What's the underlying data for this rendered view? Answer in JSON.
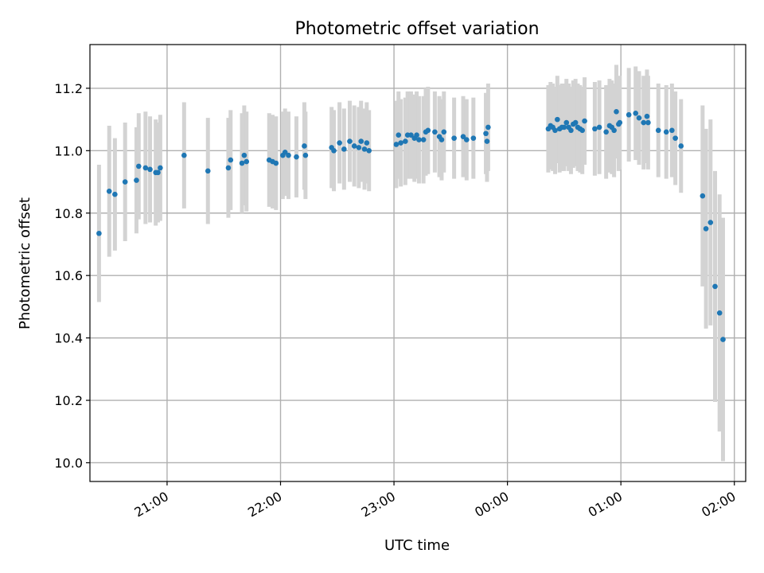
{
  "chart_data": {
    "type": "scatter",
    "title": "Photometric offset variation",
    "xlabel": "UTC time",
    "ylabel": "Photometric offset",
    "x_unit": "hours since 00:00 UTC (negative = previous day)",
    "xlim": [
      -3.68,
      2.1
    ],
    "ylim": [
      9.94,
      11.34
    ],
    "xticks": [
      {
        "x": -3,
        "label": "21:00"
      },
      {
        "x": -2,
        "label": "22:00"
      },
      {
        "x": -1,
        "label": "23:00"
      },
      {
        "x": 0,
        "label": "00:00"
      },
      {
        "x": 1,
        "label": "01:00"
      },
      {
        "x": 2,
        "label": "02:00"
      }
    ],
    "yticks": [
      {
        "y": 10.0,
        "label": "10.0"
      },
      {
        "y": 10.2,
        "label": "10.2"
      },
      {
        "y": 10.4,
        "label": "10.4"
      },
      {
        "y": 10.6,
        "label": "10.6"
      },
      {
        "y": 10.8,
        "label": "10.8"
      },
      {
        "y": 11.0,
        "label": "11.0"
      },
      {
        "y": 11.2,
        "label": "11.2"
      }
    ],
    "grid": true,
    "marker_color": "#1f77b4",
    "errorbar_color": "#d3d3d3",
    "series": [
      {
        "points": [
          [
            -3.6,
            10.735,
            0.22
          ],
          [
            -3.51,
            10.87,
            0.21
          ],
          [
            -3.46,
            10.86,
            0.18
          ],
          [
            -3.37,
            10.9,
            0.19
          ],
          [
            -3.27,
            10.905,
            0.17
          ],
          [
            -3.25,
            10.95,
            0.17
          ],
          [
            -3.19,
            10.945,
            0.18
          ],
          [
            -3.15,
            10.94,
            0.17
          ],
          [
            -3.1,
            10.93,
            0.17
          ],
          [
            -3.08,
            10.93,
            0.16
          ],
          [
            -3.06,
            10.945,
            0.17
          ],
          [
            -2.85,
            10.985,
            0.17
          ],
          [
            -2.64,
            10.935,
            0.17
          ],
          [
            -2.46,
            10.945,
            0.16
          ],
          [
            -2.44,
            10.97,
            0.16
          ],
          [
            -2.34,
            10.96,
            0.16
          ],
          [
            -2.32,
            10.985,
            0.16
          ],
          [
            -2.3,
            10.965,
            0.16
          ],
          [
            -2.1,
            10.97,
            0.15
          ],
          [
            -2.07,
            10.965,
            0.15
          ],
          [
            -2.04,
            10.96,
            0.15
          ],
          [
            -1.98,
            10.985,
            0.14
          ],
          [
            -1.96,
            10.995,
            0.14
          ],
          [
            -1.93,
            10.985,
            0.14
          ],
          [
            -1.86,
            10.98,
            0.13
          ],
          [
            -1.79,
            11.015,
            0.14
          ],
          [
            -1.78,
            10.985,
            0.14
          ],
          [
            -1.55,
            11.01,
            0.13
          ],
          [
            -1.53,
            11.0,
            0.13
          ],
          [
            -1.48,
            11.025,
            0.13
          ],
          [
            -1.44,
            11.005,
            0.13
          ],
          [
            -1.39,
            11.03,
            0.13
          ],
          [
            -1.35,
            11.015,
            0.13
          ],
          [
            -1.31,
            11.01,
            0.13
          ],
          [
            -1.29,
            11.03,
            0.13
          ],
          [
            -1.26,
            11.005,
            0.13
          ],
          [
            -1.24,
            11.025,
            0.13
          ],
          [
            -1.22,
            11.0,
            0.13
          ],
          [
            -0.98,
            11.02,
            0.14
          ],
          [
            -0.96,
            11.05,
            0.14
          ],
          [
            -0.94,
            11.025,
            0.14
          ],
          [
            -0.9,
            11.03,
            0.14
          ],
          [
            -0.88,
            11.05,
            0.14
          ],
          [
            -0.85,
            11.05,
            0.14
          ],
          [
            -0.82,
            11.04,
            0.14
          ],
          [
            -0.8,
            11.05,
            0.14
          ],
          [
            -0.78,
            11.035,
            0.14
          ],
          [
            -0.74,
            11.035,
            0.14
          ],
          [
            -0.72,
            11.06,
            0.14
          ],
          [
            -0.7,
            11.065,
            0.14
          ],
          [
            -0.64,
            11.06,
            0.13
          ],
          [
            -0.6,
            11.045,
            0.13
          ],
          [
            -0.58,
            11.035,
            0.13
          ],
          [
            -0.56,
            11.06,
            0.13
          ],
          [
            -0.47,
            11.04,
            0.13
          ],
          [
            -0.39,
            11.045,
            0.13
          ],
          [
            -0.36,
            11.035,
            0.13
          ],
          [
            -0.3,
            11.04,
            0.13
          ],
          [
            -0.19,
            11.055,
            0.13
          ],
          [
            -0.18,
            11.03,
            0.13
          ],
          [
            -0.17,
            11.075,
            0.14
          ],
          [
            0.36,
            11.07,
            0.14
          ],
          [
            0.38,
            11.08,
            0.14
          ],
          [
            0.4,
            11.075,
            0.14
          ],
          [
            0.42,
            11.065,
            0.14
          ],
          [
            0.44,
            11.1,
            0.14
          ],
          [
            0.46,
            11.07,
            0.14
          ],
          [
            0.48,
            11.075,
            0.14
          ],
          [
            0.5,
            11.075,
            0.14
          ],
          [
            0.52,
            11.09,
            0.14
          ],
          [
            0.54,
            11.075,
            0.14
          ],
          [
            0.56,
            11.065,
            0.14
          ],
          [
            0.58,
            11.085,
            0.14
          ],
          [
            0.6,
            11.09,
            0.14
          ],
          [
            0.62,
            11.075,
            0.14
          ],
          [
            0.64,
            11.07,
            0.14
          ],
          [
            0.66,
            11.065,
            0.14
          ],
          [
            0.68,
            11.095,
            0.14
          ],
          [
            0.77,
            11.07,
            0.15
          ],
          [
            0.81,
            11.075,
            0.15
          ],
          [
            0.87,
            11.06,
            0.15
          ],
          [
            0.9,
            11.08,
            0.15
          ],
          [
            0.92,
            11.075,
            0.15
          ],
          [
            0.94,
            11.065,
            0.15
          ],
          [
            0.96,
            11.125,
            0.15
          ],
          [
            0.98,
            11.085,
            0.15
          ],
          [
            0.99,
            11.09,
            0.15
          ],
          [
            1.07,
            11.115,
            0.15
          ],
          [
            1.13,
            11.12,
            0.15
          ],
          [
            1.16,
            11.105,
            0.15
          ],
          [
            1.2,
            11.09,
            0.15
          ],
          [
            1.23,
            11.11,
            0.15
          ],
          [
            1.24,
            11.09,
            0.15
          ],
          [
            1.33,
            11.065,
            0.15
          ],
          [
            1.4,
            11.06,
            0.15
          ],
          [
            1.45,
            11.065,
            0.15
          ],
          [
            1.48,
            11.04,
            0.15
          ],
          [
            1.53,
            11.015,
            0.15
          ],
          [
            1.72,
            10.855,
            0.29
          ],
          [
            1.75,
            10.75,
            0.32
          ],
          [
            1.79,
            10.77,
            0.33
          ],
          [
            1.83,
            10.565,
            0.37
          ],
          [
            1.87,
            10.48,
            0.38
          ],
          [
            1.9,
            10.395,
            0.39
          ]
        ]
      }
    ]
  }
}
